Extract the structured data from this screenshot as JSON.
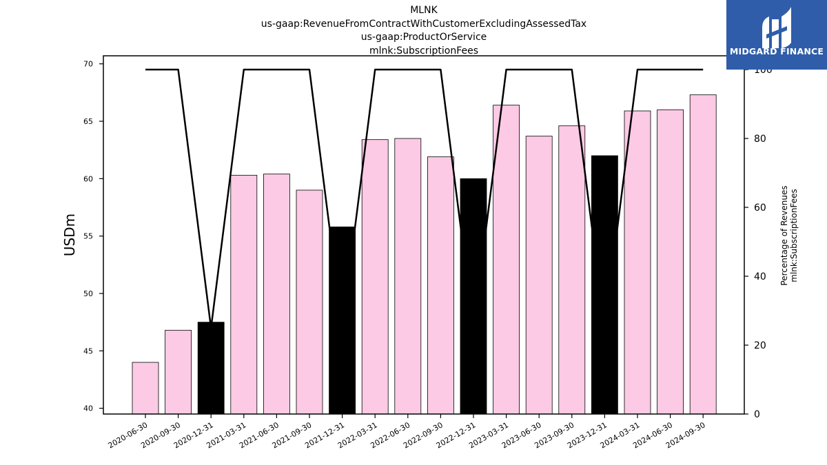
{
  "chart_data": {
    "type": "bar",
    "title_lines": [
      "MLNK",
      "us-gaap:RevenueFromContractWithCustomerExcludingAssessedTax",
      "us-gaap:ProductOrService",
      "mlnk:SubscriptionFees"
    ],
    "ylabel": "USDm",
    "ylabel_right": [
      "Percentage of Revenues",
      "mlnk:SubscriptionFees"
    ],
    "ylim": [
      39.5,
      70.7
    ],
    "ylim_right": [
      0,
      104
    ],
    "yticks": [
      40,
      45,
      50,
      55,
      60,
      65,
      70
    ],
    "yticks_right": [
      0,
      20,
      40,
      60,
      80,
      100
    ],
    "categories": [
      "2020-06-30",
      "2020-09-30",
      "2020-12-31",
      "2021-03-31",
      "2021-06-30",
      "2021-09-30",
      "2021-12-31",
      "2022-03-31",
      "2022-06-30",
      "2022-09-30",
      "2022-12-31",
      "2023-03-31",
      "2023-06-30",
      "2023-09-30",
      "2023-12-31",
      "2024-03-31",
      "2024-06-30",
      "2024-09-30"
    ],
    "series": [
      {
        "axis": "left",
        "kind": "bar",
        "values": [
          44.0,
          46.8,
          47.5,
          60.3,
          60.4,
          59.0,
          55.8,
          63.4,
          63.5,
          61.9,
          60.0,
          66.4,
          63.7,
          64.6,
          62.0,
          65.9,
          66.0,
          67.3
        ],
        "colors": [
          "#fccae4",
          "#fccae4",
          "#000000",
          "#fccae4",
          "#fccae4",
          "#fccae4",
          "#000000",
          "#fccae4",
          "#fccae4",
          "#fccae4",
          "#000000",
          "#fccae4",
          "#fccae4",
          "#fccae4",
          "#000000",
          "#fccae4",
          "#fccae4",
          "#fccae4"
        ]
      },
      {
        "axis": "right",
        "kind": "line",
        "color": "#000000",
        "values": [
          100,
          100,
          25,
          100,
          100,
          100,
          25,
          100,
          100,
          100,
          25,
          100,
          100,
          100,
          25,
          100,
          100,
          100
        ]
      }
    ],
    "grid": false,
    "legend": "none"
  },
  "logo": {
    "text": "MIDGARD FINANCE",
    "color": "#2f5daa"
  }
}
